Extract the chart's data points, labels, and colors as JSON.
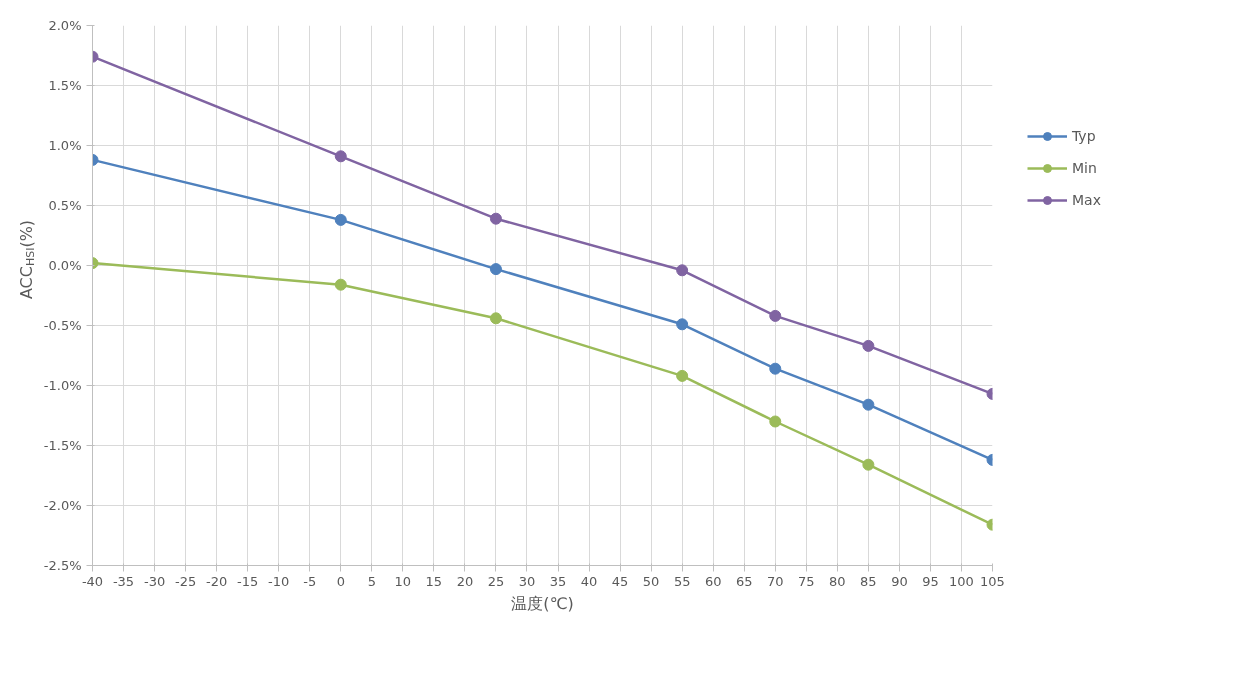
{
  "chart_data": {
    "type": "line",
    "xlabel": "温度(℃)",
    "ylabel": "ACC$_{HSI}$(%)",
    "x": [
      -40,
      0,
      25,
      55,
      70,
      85,
      105
    ],
    "series": [
      {
        "name": "Typ",
        "color": "#4f81bd",
        "values": [
          0.88,
          0.38,
          -0.03,
          -0.49,
          -0.86,
          -1.16,
          -1.62
        ]
      },
      {
        "name": "Min",
        "color": "#9bbb59",
        "values": [
          0.02,
          -0.16,
          -0.44,
          -0.92,
          -1.3,
          -1.66,
          -2.16
        ]
      },
      {
        "name": "Max",
        "color": "#8064a2",
        "values": [
          1.74,
          0.91,
          0.39,
          -0.04,
          -0.42,
          -0.67,
          -1.07
        ]
      }
    ],
    "xlim": [
      -40,
      105
    ],
    "xticks": [
      -40,
      -35,
      -30,
      -25,
      -20,
      -15,
      -10,
      -5,
      0,
      5,
      10,
      15,
      20,
      25,
      30,
      35,
      40,
      45,
      50,
      55,
      60,
      65,
      70,
      75,
      80,
      85,
      90,
      95,
      100,
      105
    ],
    "ylim": [
      -2.5,
      2.0
    ],
    "yticks": [
      {
        "value": 2.0,
        "label": "2.0%"
      },
      {
        "value": 1.5,
        "label": "1.5%"
      },
      {
        "value": 1.0,
        "label": "1.0%"
      },
      {
        "value": 0.5,
        "label": "0.5%"
      },
      {
        "value": 0.0,
        "label": "0.0%"
      },
      {
        "value": -0.5,
        "label": "-0.5%"
      },
      {
        "value": -1.0,
        "label": "-1.0%"
      },
      {
        "value": -1.5,
        "label": "-1.5%"
      },
      {
        "value": -2.0,
        "label": "-2.0%"
      },
      {
        "value": -2.5,
        "label": "-2.5%"
      }
    ],
    "grid": true,
    "legend": "right",
    "marker": "circle",
    "line_style": "solid"
  }
}
